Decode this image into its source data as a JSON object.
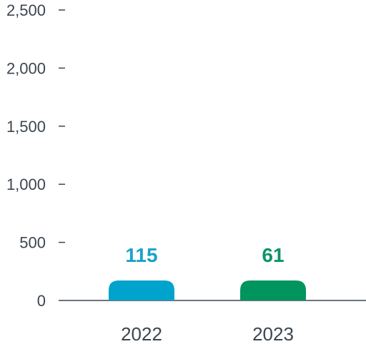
{
  "chart_data": {
    "type": "bar",
    "categories": [
      "2022",
      "2023"
    ],
    "values": [
      115,
      61
    ],
    "value_labels": [
      "115",
      "61"
    ],
    "ylim": [
      0,
      2500
    ],
    "yticks": [
      0,
      500,
      1000,
      1500,
      2000,
      2500
    ],
    "ytick_labels": [
      "0",
      "500",
      "1,000",
      "1,500",
      "2,000",
      "2,500"
    ],
    "colors": [
      "#00a3cc",
      "#00945e"
    ],
    "label_colors": [
      "#1aa2c8",
      "#0e9466"
    ],
    "axis_color": "#3c4650",
    "grid": false,
    "legend": "none"
  }
}
